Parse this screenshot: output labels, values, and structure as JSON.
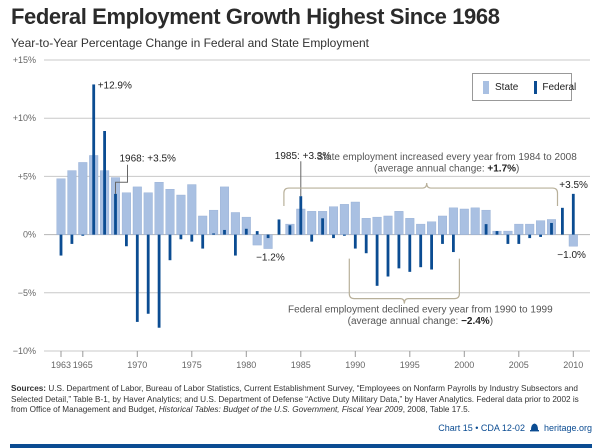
{
  "header": {
    "title": "Federal Employment Growth Highest Since 1968",
    "subtitle": "Year-to-Year Percentage Change in Federal and State Employment"
  },
  "legend": {
    "items": [
      {
        "label": "State",
        "color": "#a9c0e2"
      },
      {
        "label": "Federal",
        "color": "#0b4c92"
      }
    ]
  },
  "annotations": {
    "peak_1966": "+12.9%",
    "federal_1968": "1968: +3.5%",
    "federal_1985": "1985: +3.3%",
    "state_1982": "−1.2%",
    "federal_2010": "+3.5%",
    "state_2010": "−1.0%",
    "state_bracket_line1": "State employment increased every year from 1984 to 2008",
    "state_bracket_line2_prefix": "(average annual change: ",
    "state_bracket_value": "+1.7%",
    "state_bracket_suffix": ")",
    "federal_bracket_line1": "Federal employment declined every year from 1990 to 1999",
    "federal_bracket_line2_prefix": "(average annual change: ",
    "federal_bracket_value": "−2.4%",
    "federal_bracket_suffix": ")"
  },
  "footer": {
    "sources_label": "Sources:",
    "sources_text_1": " U.S. Department of Labor, Bureau of Labor Statistics, Current Establishment Survey, “Employees on Nonfarm Payrolls by Industry Subsectors and Selected Detail,” Table B-1, by Haver Analytics; and U.S. Department of Defense “Active Duty Military Data,” by Haver Analytics. Federal data prior to 2002 is from Office of Management and Budget, ",
    "sources_italic": "Historical Tables: Budget of the U.S. Government, Fiscal Year 2009",
    "sources_text_2": ", 2008, Table 17.5.",
    "chart_id": "Chart 15 • CDA 12-02",
    "site": "heritage.org",
    "accent_color": "#0b4c92"
  },
  "chart_data": {
    "type": "bar",
    "title": "Federal Employment Growth Highest Since 1968",
    "subtitle": "Year-to-Year Percentage Change in Federal and State Employment",
    "xlabel": "",
    "ylabel": "",
    "ylim": [
      -10,
      15
    ],
    "yticks": [
      -10,
      -5,
      0,
      5,
      10,
      15
    ],
    "ytick_labels": [
      "−10%",
      "−5%",
      "0%",
      "+5%",
      "+10%",
      "+15%"
    ],
    "xticks": [
      1963,
      1965,
      1970,
      1975,
      1980,
      1985,
      1990,
      1995,
      2000,
      2005,
      2010
    ],
    "grid": true,
    "legend_position": "top-right",
    "categories": [
      1963,
      1964,
      1965,
      1966,
      1967,
      1968,
      1969,
      1970,
      1971,
      1972,
      1973,
      1974,
      1975,
      1976,
      1977,
      1978,
      1979,
      1980,
      1981,
      1982,
      1983,
      1984,
      1985,
      1986,
      1987,
      1988,
      1989,
      1990,
      1991,
      1992,
      1993,
      1994,
      1995,
      1996,
      1997,
      1998,
      1999,
      2000,
      2001,
      2002,
      2003,
      2004,
      2005,
      2006,
      2007,
      2008,
      2009,
      2010
    ],
    "series": [
      {
        "name": "State",
        "color": "#a9c0e2",
        "values": [
          4.8,
          5.5,
          6.2,
          6.8,
          5.5,
          4.9,
          3.6,
          4.1,
          3.6,
          4.5,
          3.9,
          3.4,
          4.3,
          1.6,
          2.1,
          4.1,
          1.9,
          1.5,
          -0.9,
          -1.2,
          0.0,
          0.9,
          2.2,
          2.0,
          2.0,
          2.4,
          2.6,
          2.8,
          1.4,
          1.5,
          1.6,
          2.0,
          1.4,
          0.9,
          1.1,
          1.6,
          2.3,
          2.2,
          2.3,
          2.1,
          0.3,
          0.3,
          0.9,
          0.9,
          1.2,
          1.3,
          0.0,
          -1.0
        ]
      },
      {
        "name": "Federal",
        "color": "#0b4c92",
        "values": [
          -1.8,
          -0.8,
          -0.1,
          12.9,
          8.9,
          3.5,
          -1.0,
          -7.5,
          -6.8,
          -8.0,
          -2.2,
          -0.4,
          -0.6,
          -1.2,
          0.1,
          0.4,
          -1.8,
          0.5,
          0.3,
          -0.3,
          1.3,
          0.8,
          3.3,
          -0.6,
          1.4,
          -0.3,
          -0.1,
          -1.2,
          -1.6,
          -4.4,
          -3.6,
          -2.9,
          -3.2,
          -2.8,
          -3.0,
          -0.8,
          -1.5,
          0.0,
          0.0,
          0.9,
          0.3,
          -0.8,
          -0.8,
          -0.3,
          -0.2,
          1.0,
          2.3,
          3.5
        ]
      }
    ],
    "annotations": [
      {
        "year": 1966,
        "series": "Federal",
        "text": "+12.9%"
      },
      {
        "year": 1968,
        "series": "Federal",
        "text": "1968: +3.5%"
      },
      {
        "year": 1985,
        "series": "Federal",
        "text": "1985: +3.3%"
      },
      {
        "year": 1982,
        "series": "State",
        "text": "−1.2%"
      },
      {
        "year": 2010,
        "series": "Federal",
        "text": "+3.5%"
      },
      {
        "year": 2010,
        "series": "State",
        "text": "−1.0%"
      },
      {
        "range": [
          1984,
          2008
        ],
        "series": "State",
        "text": "State employment increased every year from 1984 to 2008 (average annual change: +1.7%)"
      },
      {
        "range": [
          1990,
          1999
        ],
        "series": "Federal",
        "text": "Federal employment declined every year from 1990 to 1999 (average annual change: −2.4%)"
      }
    ]
  }
}
